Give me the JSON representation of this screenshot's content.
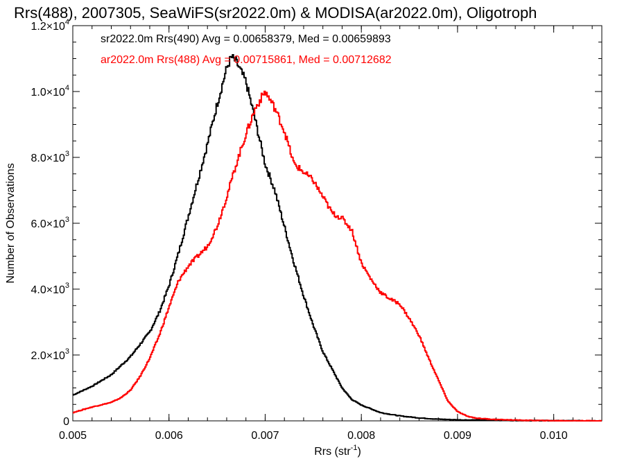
{
  "chart_data": {
    "type": "line",
    "title": "Rrs(488), 2007305, SeaWiFS(sr2022.0m) & MODISA(ar2022.0m), Oligotroph",
    "xlabel": "Rrs (str",
    "xlabel_sup": "-1",
    "xlabel_end": ")",
    "ylabel": "Number of Observations",
    "xlim": [
      0.005,
      0.0105
    ],
    "ylim": [
      0,
      12000
    ],
    "x_ticks": [
      {
        "value": 0.005,
        "label": "0.005"
      },
      {
        "value": 0.006,
        "label": "0.006"
      },
      {
        "value": 0.007,
        "label": "0.007"
      },
      {
        "value": 0.008,
        "label": "0.008"
      },
      {
        "value": 0.009,
        "label": "0.009"
      },
      {
        "value": 0.01,
        "label": "0.010"
      }
    ],
    "y_ticks": [
      {
        "value": 0,
        "mant": "0",
        "exp": ""
      },
      {
        "value": 2000,
        "mant": "2.0×10",
        "exp": "3"
      },
      {
        "value": 4000,
        "mant": "4.0×10",
        "exp": "3"
      },
      {
        "value": 6000,
        "mant": "6.0×10",
        "exp": "3"
      },
      {
        "value": 8000,
        "mant": "8.0×10",
        "exp": "3"
      },
      {
        "value": 10000,
        "mant": "1.0×10",
        "exp": "4"
      },
      {
        "value": 12000,
        "mant": "1.2×10",
        "exp": "4"
      }
    ],
    "legend": [
      "sr2022.0m Rrs(490) Avg = 0.00658379, Med = 0.00659893",
      "ar2022.0m Rrs(488) Avg = 0.00715861, Med = 0.00712682"
    ],
    "series": [
      {
        "color": "#000000",
        "points": [
          [
            0.005,
            780
          ],
          [
            0.0052,
            1050
          ],
          [
            0.0054,
            1400
          ],
          [
            0.0056,
            1950
          ],
          [
            0.0058,
            2700
          ],
          [
            0.0059,
            3300
          ],
          [
            0.006,
            4100
          ],
          [
            0.0061,
            5100
          ],
          [
            0.0062,
            6200
          ],
          [
            0.0063,
            7300
          ],
          [
            0.0064,
            8400
          ],
          [
            0.0065,
            9600
          ],
          [
            0.0066,
            10700
          ],
          [
            0.00665,
            11050
          ],
          [
            0.0067,
            10900
          ],
          [
            0.0068,
            10300
          ],
          [
            0.0069,
            9100
          ],
          [
            0.007,
            7800
          ],
          [
            0.0071,
            7000
          ],
          [
            0.0072,
            5900
          ],
          [
            0.0073,
            4800
          ],
          [
            0.0074,
            3800
          ],
          [
            0.0075,
            2900
          ],
          [
            0.0076,
            2100
          ],
          [
            0.0077,
            1550
          ],
          [
            0.0078,
            1000
          ],
          [
            0.0079,
            650
          ],
          [
            0.008,
            480
          ],
          [
            0.0082,
            250
          ],
          [
            0.0084,
            150
          ],
          [
            0.0086,
            90
          ],
          [
            0.0088,
            50
          ],
          [
            0.009,
            30
          ],
          [
            0.0095,
            15
          ],
          [
            0.01,
            5
          ],
          [
            0.0105,
            0
          ]
        ]
      },
      {
        "color": "#ff0000",
        "points": [
          [
            0.005,
            250
          ],
          [
            0.0052,
            420
          ],
          [
            0.0054,
            560
          ],
          [
            0.0055,
            700
          ],
          [
            0.0056,
            930
          ],
          [
            0.0057,
            1350
          ],
          [
            0.0058,
            1900
          ],
          [
            0.0059,
            2600
          ],
          [
            0.006,
            3450
          ],
          [
            0.0061,
            4250
          ],
          [
            0.0062,
            4700
          ],
          [
            0.0063,
            5000
          ],
          [
            0.0064,
            5300
          ],
          [
            0.0065,
            5900
          ],
          [
            0.0066,
            6800
          ],
          [
            0.0067,
            7800
          ],
          [
            0.0068,
            8700
          ],
          [
            0.0069,
            9500
          ],
          [
            0.007,
            10000
          ],
          [
            0.0071,
            9500
          ],
          [
            0.0072,
            8800
          ],
          [
            0.0073,
            7800
          ],
          [
            0.0074,
            7550
          ],
          [
            0.0075,
            7300
          ],
          [
            0.0076,
            6800
          ],
          [
            0.0077,
            6300
          ],
          [
            0.0078,
            6150
          ],
          [
            0.0079,
            5800
          ],
          [
            0.008,
            4800
          ],
          [
            0.0081,
            4300
          ],
          [
            0.0082,
            3900
          ],
          [
            0.0083,
            3700
          ],
          [
            0.0084,
            3550
          ],
          [
            0.0085,
            3100
          ],
          [
            0.0086,
            2600
          ],
          [
            0.0087,
            1900
          ],
          [
            0.0088,
            1250
          ],
          [
            0.0089,
            600
          ],
          [
            0.009,
            280
          ],
          [
            0.0091,
            140
          ],
          [
            0.0092,
            80
          ],
          [
            0.0094,
            40
          ],
          [
            0.0097,
            15
          ],
          [
            0.01,
            5
          ],
          [
            0.0105,
            0
          ]
        ]
      }
    ]
  }
}
